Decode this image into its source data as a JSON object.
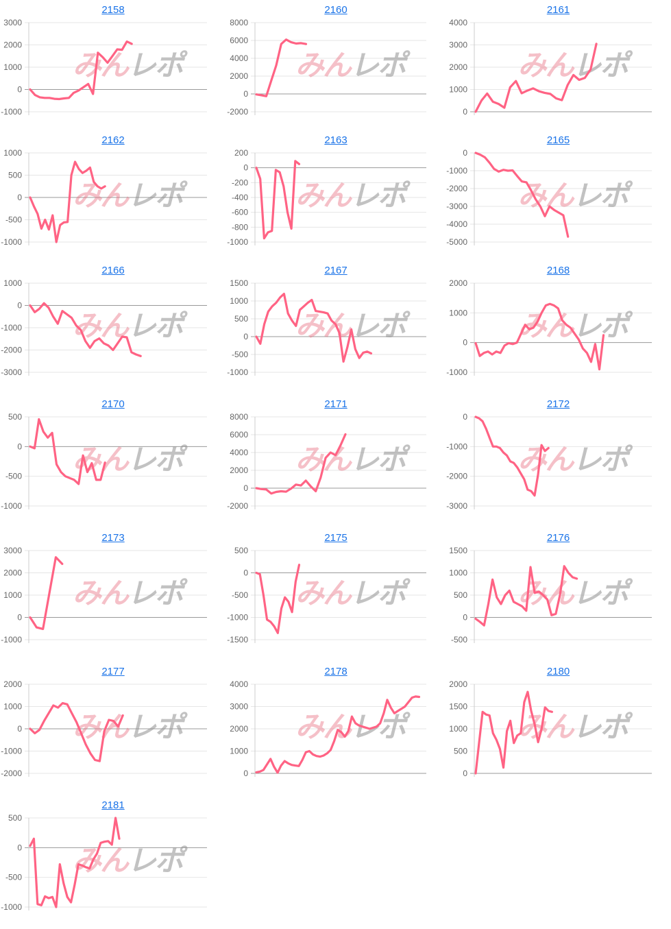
{
  "page": {
    "background": "#ffffff"
  },
  "watermark": {
    "part1": "みん",
    "part2": "レポ"
  },
  "colors": {
    "line": "#ff6384",
    "grid": "#e6e6e6",
    "zero_line": "#999999",
    "axis": "#cccccc",
    "tick_text": "#666666",
    "link": "#1a73e8"
  },
  "chart_data": [
    {
      "type": "line",
      "title": "2158",
      "ylim": [
        -1000,
        3000
      ],
      "yticks": [
        3000,
        2000,
        1000,
        0,
        -1000
      ],
      "x_fraction": 0.57,
      "values": [
        0,
        -250,
        -350,
        -380,
        -380,
        -420,
        -430,
        -400,
        -380,
        -150,
        -50,
        100,
        250,
        -200,
        1650,
        1450,
        1200,
        1500,
        1800,
        1780,
        2150,
        2050
      ]
    },
    {
      "type": "line",
      "title": "2160",
      "ylim": [
        -2000,
        8000
      ],
      "yticks": [
        8000,
        6000,
        4000,
        2000,
        0,
        -2000
      ],
      "x_fraction": 0.29,
      "values": [
        -50,
        -150,
        -250,
        1500,
        3200,
        5600,
        6100,
        5800,
        5650,
        5700,
        5600
      ]
    },
    {
      "type": "line",
      "title": "2161",
      "ylim": [
        0,
        4000
      ],
      "yticks": [
        4000,
        3000,
        2000,
        1000,
        0
      ],
      "x_fraction": 0.68,
      "values": [
        0,
        500,
        820,
        450,
        350,
        180,
        1100,
        1380,
        830,
        950,
        1050,
        920,
        850,
        800,
        600,
        520,
        1200,
        1650,
        1430,
        1520,
        1900,
        3050
      ]
    },
    {
      "type": "line",
      "title": "2162",
      "ylim": [
        -1000,
        1000
      ],
      "yticks": [
        1000,
        500,
        0,
        -500,
        -1000
      ],
      "x_fraction": 0.42,
      "values": [
        0,
        -200,
        -370,
        -700,
        -500,
        -720,
        -400,
        -1000,
        -620,
        -560,
        -550,
        500,
        800,
        640,
        550,
        600,
        670,
        350,
        250,
        200,
        250
      ]
    },
    {
      "type": "line",
      "title": "2163",
      "ylim": [
        -1000,
        200
      ],
      "yticks": [
        200,
        0,
        -200,
        -400,
        -600,
        -800,
        -1000
      ],
      "x_fraction": 0.25,
      "values": [
        0,
        -150,
        -950,
        -870,
        -850,
        -30,
        -60,
        -250,
        -600,
        -820,
        90,
        50
      ]
    },
    {
      "type": "line",
      "title": "2165",
      "ylim": [
        -5000,
        0
      ],
      "yticks": [
        0,
        -1000,
        -2000,
        -3000,
        -4000,
        -5000
      ],
      "x_fraction": 0.52,
      "values": [
        0,
        -100,
        -250,
        -550,
        -900,
        -1050,
        -950,
        -1000,
        -980,
        -1300,
        -1600,
        -1650,
        -2100,
        -2600,
        -3000,
        -3550,
        -3000,
        -3200,
        -3350,
        -3500,
        -4700
      ]
    },
    {
      "type": "line",
      "title": "2166",
      "ylim": [
        -3000,
        1000
      ],
      "yticks": [
        1000,
        0,
        -1000,
        -2000,
        -3000
      ],
      "x_fraction": 0.62,
      "values": [
        0,
        -300,
        -150,
        100,
        -100,
        -500,
        -820,
        -250,
        -400,
        -550,
        -900,
        -1100,
        -1600,
        -1900,
        -1600,
        -1480,
        -1700,
        -1800,
        -2000,
        -1700,
        -1400,
        -1430,
        -2100,
        -2200,
        -2270
      ]
    },
    {
      "type": "line",
      "title": "2167",
      "ylim": [
        -1000,
        1500
      ],
      "yticks": [
        1500,
        1000,
        500,
        0,
        -500,
        -1000
      ],
      "x_fraction": 0.67,
      "values": [
        0,
        -200,
        350,
        700,
        850,
        950,
        1100,
        1200,
        650,
        450,
        300,
        750,
        850,
        950,
        1030,
        720,
        700,
        680,
        650,
        450,
        350,
        100,
        -700,
        -300,
        200,
        -350,
        -600,
        -450,
        -420,
        -470
      ]
    },
    {
      "type": "line",
      "title": "2168",
      "ylim": [
        -1000,
        2000
      ],
      "yticks": [
        2000,
        1000,
        0,
        -1000
      ],
      "x_fraction": 0.72,
      "values": [
        -20,
        -450,
        -350,
        -300,
        -400,
        -300,
        -350,
        -100,
        -20,
        -50,
        0,
        300,
        600,
        450,
        500,
        700,
        1000,
        1250,
        1300,
        1250,
        1150,
        750,
        600,
        500,
        300,
        100,
        -200,
        -350,
        -650,
        -50,
        -900,
        250
      ]
    },
    {
      "type": "line",
      "title": "2170",
      "ylim": [
        -1000,
        500
      ],
      "yticks": [
        500,
        0,
        -500,
        -1000
      ],
      "x_fraction": 0.42,
      "values": [
        0,
        -30,
        460,
        250,
        150,
        230,
        -300,
        -430,
        -500,
        -530,
        -560,
        -630,
        -150,
        -430,
        -280,
        -560,
        -560,
        -270
      ]
    },
    {
      "type": "line",
      "title": "2171",
      "ylim": [
        -2000,
        8000
      ],
      "yticks": [
        8000,
        6000,
        4000,
        2000,
        0,
        -2000
      ],
      "x_fraction": 0.52,
      "values": [
        0,
        -100,
        -150,
        -600,
        -420,
        -350,
        -400,
        -50,
        400,
        300,
        850,
        200,
        -350,
        1200,
        3400,
        4000,
        3700,
        4800,
        6050
      ]
    },
    {
      "type": "line",
      "title": "2172",
      "ylim": [
        -3000,
        0
      ],
      "yticks": [
        0,
        -1000,
        -2000,
        -3000
      ],
      "x_fraction": 0.41,
      "values": [
        0,
        -50,
        -150,
        -400,
        -700,
        -1000,
        -1000,
        -1050,
        -1200,
        -1300,
        -1500,
        -1550,
        -1700,
        -1900,
        -2100,
        -2450,
        -2500,
        -2650,
        -1950,
        -950,
        -1150,
        -1050
      ]
    },
    {
      "type": "line",
      "title": "2173",
      "ylim": [
        -1000,
        3000
      ],
      "yticks": [
        3000,
        2000,
        1000,
        0,
        -1000
      ],
      "x_fraction": 0.18,
      "values": [
        0,
        -450,
        -520,
        1100,
        2700,
        2400
      ]
    },
    {
      "type": "line",
      "title": "2175",
      "ylim": [
        -1500,
        500
      ],
      "yticks": [
        500,
        0,
        -500,
        -1000,
        -1500
      ],
      "x_fraction": 0.25,
      "values": [
        0,
        -30,
        -500,
        -1050,
        -1100,
        -1200,
        -1350,
        -800,
        -550,
        -650,
        -880,
        -200,
        180
      ]
    },
    {
      "type": "line",
      "title": "2176",
      "ylim": [
        -500,
        1500
      ],
      "yticks": [
        1500,
        1000,
        500,
        0,
        -500
      ],
      "x_fraction": 0.57,
      "values": [
        -30,
        -100,
        -180,
        300,
        850,
        450,
        300,
        500,
        600,
        350,
        300,
        250,
        150,
        1130,
        550,
        580,
        500,
        400,
        50,
        80,
        500,
        1150,
        1000,
        900,
        870
      ]
    },
    {
      "type": "line",
      "title": "2177",
      "ylim": [
        -2000,
        2000
      ],
      "yticks": [
        2000,
        1000,
        0,
        -1000,
        -2000
      ],
      "x_fraction": 0.52,
      "values": [
        0,
        -200,
        -50,
        350,
        700,
        1050,
        950,
        1150,
        1100,
        700,
        300,
        -200,
        -700,
        -1100,
        -1400,
        -1450,
        -100,
        400,
        350,
        100,
        600
      ]
    },
    {
      "type": "line",
      "title": "2178",
      "ylim": [
        0,
        4000
      ],
      "yticks": [
        4000,
        3000,
        2000,
        1000,
        0
      ],
      "x_fraction": 0.95,
      "values": [
        50,
        80,
        150,
        400,
        650,
        300,
        30,
        350,
        550,
        450,
        380,
        350,
        330,
        600,
        950,
        1000,
        850,
        780,
        750,
        800,
        900,
        1050,
        1450,
        1950,
        1850,
        1650,
        1900,
        2550,
        2250,
        2150,
        2100,
        2050,
        2000,
        2050,
        2100,
        2250,
        2700,
        3300,
        2950,
        2700,
        2800,
        2900,
        3000,
        3200,
        3400,
        3450,
        3430
      ]
    },
    {
      "type": "line",
      "title": "2180",
      "ylim": [
        0,
        2000
      ],
      "yticks": [
        2000,
        1500,
        1000,
        500,
        0
      ],
      "x_fraction": 0.43,
      "values": [
        0,
        700,
        1380,
        1320,
        1300,
        900,
        750,
        550,
        130,
        950,
        1180,
        680,
        850,
        900,
        1600,
        1830,
        1400,
        1100,
        700,
        1000,
        1480,
        1400,
        1380
      ]
    },
    {
      "type": "line",
      "title": "2181",
      "ylim": [
        -1000,
        500
      ],
      "yticks": [
        500,
        0,
        -500,
        -1000
      ],
      "x_fraction": 0.5,
      "values": [
        30,
        150,
        -950,
        -970,
        -820,
        -850,
        -830,
        -1000,
        -280,
        -600,
        -830,
        -920,
        -620,
        -280,
        -300,
        -330,
        -350,
        -200,
        -100,
        80,
        100,
        110,
        50,
        500,
        150
      ]
    }
  ]
}
